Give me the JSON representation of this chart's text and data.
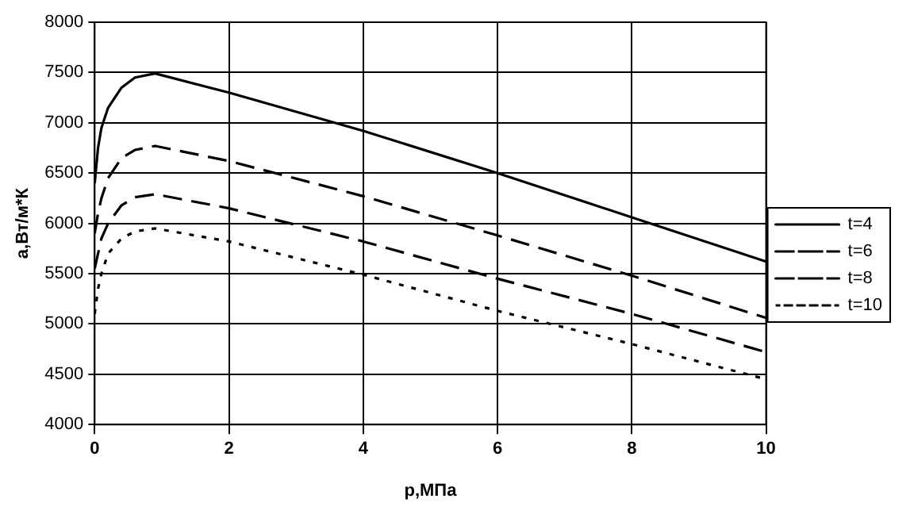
{
  "chart_data": {
    "type": "line",
    "xlabel": "p,МПа",
    "ylabel": "a,Вт/м*К",
    "x": [
      0,
      0.05,
      0.1,
      0.2,
      0.4,
      0.6,
      0.9,
      2,
      4,
      6,
      8,
      10
    ],
    "series": [
      {
        "name": "t=4",
        "color": "#000000",
        "line_style": "solid",
        "values": [
          6400,
          6750,
          6950,
          7150,
          7350,
          7450,
          7490,
          7300,
          6920,
          6500,
          6060,
          5620
        ]
      },
      {
        "name": "t=6",
        "color": "#000000",
        "line_style": "dashed",
        "values": [
          5900,
          6100,
          6250,
          6450,
          6650,
          6730,
          6770,
          6620,
          6270,
          5880,
          5480,
          5060
        ]
      },
      {
        "name": "t=8",
        "color": "#000000",
        "line_style": "dashed",
        "values": [
          5550,
          5700,
          5850,
          6000,
          6180,
          6260,
          6290,
          6150,
          5820,
          5450,
          5100,
          4720
        ]
      },
      {
        "name": "t=10",
        "color": "#000000",
        "line_style": "dotted",
        "values": [
          5100,
          5350,
          5500,
          5700,
          5850,
          5920,
          5950,
          5820,
          5490,
          5130,
          4800,
          4450
        ]
      }
    ],
    "xlim": [
      0,
      10
    ],
    "xticks": [
      0,
      2,
      4,
      6,
      8,
      10
    ],
    "ylim": [
      4000,
      8000
    ],
    "yticks": [
      4000,
      4500,
      5000,
      5500,
      6000,
      6500,
      7000,
      7500,
      8000
    ],
    "grid": true,
    "legend": "right",
    "marker": "none"
  }
}
